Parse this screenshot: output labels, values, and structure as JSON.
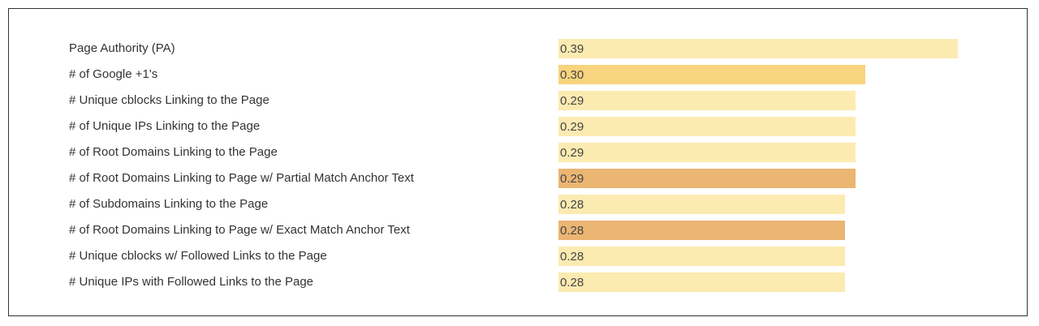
{
  "chart_data": {
    "type": "bar",
    "orientation": "horizontal",
    "categories": [
      "Page Authority (PA)",
      "# of Google +1's",
      "# Unique cblocks Linking to the Page",
      "# of Unique IPs Linking to the Page",
      "# of Root Domains Linking to the Page",
      "# of Root Domains Linking to Page w/ Partial Match Anchor Text",
      "# of Subdomains Linking to the Page",
      "# of Root Domains Linking to Page w/ Exact Match Anchor Text",
      "# Unique cblocks w/ Followed Links to the Page",
      "# Unique IPs with Followed Links to the Page"
    ],
    "values": [
      0.39,
      0.3,
      0.29,
      0.29,
      0.29,
      0.29,
      0.28,
      0.28,
      0.28,
      0.28
    ],
    "value_labels": [
      "0.39",
      "0.30",
      "0.29",
      "0.29",
      "0.29",
      "0.29",
      "0.28",
      "0.28",
      "0.28",
      "0.28"
    ],
    "bar_colors": [
      "#fcebb1",
      "#f8d47e",
      "#fcebb1",
      "#fcebb1",
      "#fcebb1",
      "#ebb572",
      "#fcebb1",
      "#ebb572",
      "#fcebb1",
      "#fcebb1"
    ],
    "grid": false,
    "legend": "none"
  }
}
